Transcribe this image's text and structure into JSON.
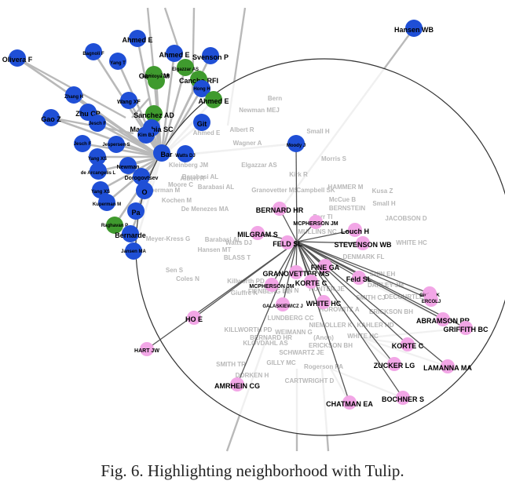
{
  "caption": "Fig. 6.  Highlighting neighborhood with Tulip.",
  "colors": {
    "blue": "#1f4fd6",
    "green": "#3f9a2e",
    "pink": "#f2a6e6",
    "edge": "#b9b9b9",
    "lens": "#ffffff",
    "lens_border": "#333333"
  },
  "nodes": [
    {
      "label": "Hansen WB",
      "c": "blue"
    },
    {
      "label": "Olivera F",
      "c": "blue"
    },
    {
      "label": "Ahmed E",
      "c": "blue"
    },
    {
      "label": "Bagnoli F",
      "c": "blue"
    },
    {
      "label": "Yang T",
      "c": "blue"
    },
    {
      "label": "Ahmed E",
      "c": "blue"
    },
    {
      "label": "Elgazzar AS",
      "c": "green"
    },
    {
      "label": "Svenson P",
      "c": "blue"
    },
    {
      "label": "Gade PM",
      "c": "green"
    },
    {
      "label": "Montoya JM",
      "c": "green"
    },
    {
      "label": "Cancho RFI",
      "c": "green"
    },
    {
      "label": "Hong H",
      "c": "blue"
    },
    {
      "label": "Zhang H",
      "c": "blue"
    },
    {
      "label": "Ahmed E",
      "c": "green"
    },
    {
      "label": "Wang XF",
      "c": "blue"
    },
    {
      "label": "Gao Z",
      "c": "blue"
    },
    {
      "label": "Zhu CP",
      "c": "blue"
    },
    {
      "label": "Sanchez AD",
      "c": "green"
    },
    {
      "label": "Jesch F",
      "c": "blue"
    },
    {
      "label": "Manrubia SC",
      "c": "blue"
    },
    {
      "label": "Git",
      "c": "blue"
    },
    {
      "label": "Kim BJ",
      "c": "blue"
    },
    {
      "label": "Jesch F",
      "c": "blue"
    },
    {
      "label": "Jespersen S",
      "c": "blue"
    },
    {
      "label": "Bar",
      "c": "blue"
    },
    {
      "label": "Watts DJ",
      "c": "blue"
    },
    {
      "label": "Yang XS",
      "c": "blue"
    },
    {
      "label": "Newman",
      "c": "blue"
    },
    {
      "label": "de Arcangelis L",
      "c": "blue"
    },
    {
      "label": "Dorogovtsev",
      "c": "blue"
    },
    {
      "label": "Yang XS",
      "c": "blue"
    },
    {
      "label": "O",
      "c": "blue"
    },
    {
      "label": "Kuperman M",
      "c": "blue"
    },
    {
      "label": "Pa",
      "c": "blue"
    },
    {
      "label": "Raghavan P",
      "c": "green"
    },
    {
      "label": "Bernarde",
      "c": "blue"
    },
    {
      "label": "Jansen MA",
      "c": "blue"
    },
    {
      "label": "Moody J",
      "c": "blue"
    },
    {
      "label": "BERNARD HR",
      "c": "pink"
    },
    {
      "label": "MCPHERSON JM",
      "c": "pink"
    },
    {
      "label": "Louch H",
      "c": "pink"
    },
    {
      "label": "MILGRAM S",
      "c": "pink"
    },
    {
      "label": "FELD SL",
      "c": "pink"
    },
    {
      "label": "STEVENSON WB",
      "c": "pink"
    },
    {
      "label": "FINE GA",
      "c": "pink"
    },
    {
      "label": "GRANOVETTER MS",
      "c": "pink"
    },
    {
      "label": "Feld SL",
      "c": "pink"
    },
    {
      "label": "KORTE C",
      "c": "pink"
    },
    {
      "label": "MCPHERSON JM",
      "c": "pink"
    },
    {
      "label": "GALASKIEWICZ J",
      "c": "pink"
    },
    {
      "label": "WHITE HC",
      "c": "pink"
    },
    {
      "label": "Giuffre K",
      "c": "pink"
    },
    {
      "label": "ERCOLJ",
      "c": "pink"
    },
    {
      "label": "HO E",
      "c": "pink"
    },
    {
      "label": "ABRAMSON PR",
      "c": "pink"
    },
    {
      "label": "GRIFFITH BC",
      "c": "pink"
    },
    {
      "label": "HART JW",
      "c": "pink"
    },
    {
      "label": "KORTE C",
      "c": "pink"
    },
    {
      "label": "ZUCKER LG",
      "c": "pink"
    },
    {
      "label": "LAMANNA MA",
      "c": "pink"
    },
    {
      "label": "AMRHEIN CG",
      "c": "pink"
    },
    {
      "label": "CHATMAN EA",
      "c": "pink"
    },
    {
      "label": "BOCHNER S",
      "c": "pink"
    }
  ],
  "faded_labels": [
    "Newman MEJ",
    "Bern",
    "Small H",
    "Albert R",
    "Wagner A",
    "Ahmed E",
    "Kleinberg JM",
    "Morris S",
    "Barabasi AL",
    "Kochen M",
    "Moore C",
    "Albert R",
    "Elgazzar AS",
    "Kuperman M",
    "Barabasi AL",
    "Kirk R",
    "Granovetter MS",
    "De Menezes MA",
    "HAMMER M",
    "Kusa Z",
    "McCue B",
    "Small H",
    "Campbell SK",
    "BERNSTEIN",
    "JACOBSON D",
    "Farr TI",
    "Barabasi AL",
    "Meyer-Kress G",
    "Watts DJ",
    "MULLINS NC",
    "WHITE HC",
    "Hansen MT",
    "DENMARK FL",
    "BLASS T",
    "Sen S",
    "SHIN EH",
    "Coles N",
    "Killworth PD",
    "DARLEY JM",
    "Giuffre K",
    "FIENBERG SE",
    "LIN N",
    "HUNTER JE",
    "SMITH CJ",
    "DECOURTLES",
    "HOROWITZ A",
    "ERICKSON BH",
    "LUNDBERG CC",
    "NIEMOLLER K",
    "KAHLER HD",
    "KILLWORTH PD",
    "BERNARD HR",
    "WEIMANN G",
    "WHITE HC",
    "KLOVDAHL AS",
    "(Anon)",
    "ERICKSON BH",
    "SCHWARTZ JE",
    "SMITH TR",
    "GILLY MC",
    "Rogerson PA",
    "DORKEN H",
    "CARTWRIGHT D"
  ]
}
